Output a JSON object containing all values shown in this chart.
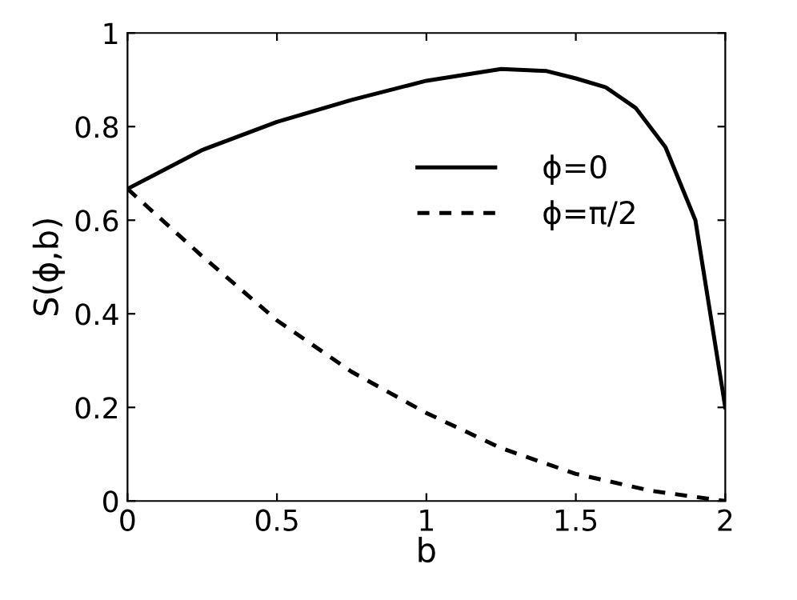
{
  "chart_data": {
    "type": "line",
    "xlabel": "b",
    "ylabel": "S(ϕ,b)",
    "xlim": [
      0,
      2
    ],
    "ylim": [
      0,
      1
    ],
    "xticks": [
      0,
      0.5,
      1,
      1.5,
      2
    ],
    "yticks": [
      0,
      0.2,
      0.4,
      0.6,
      0.8,
      1
    ],
    "legend": "top right",
    "grid": false,
    "series": [
      {
        "name": "ϕ=0",
        "color": "#000000",
        "line_style": "solid",
        "x": [
          0,
          0.25,
          0.5,
          0.75,
          1,
          1.25,
          1.4,
          1.5,
          1.6,
          1.7,
          1.8,
          1.9,
          2
        ],
        "values": [
          0.667,
          0.75,
          0.81,
          0.857,
          0.898,
          0.923,
          0.919,
          0.903,
          0.884,
          0.84,
          0.756,
          0.6,
          0.2
        ]
      },
      {
        "name": "ϕ=π/2",
        "color": "#000000",
        "line_style": "dashed",
        "x": [
          0,
          0.25,
          0.5,
          0.75,
          1,
          1.25,
          1.5,
          1.75,
          2
        ],
        "values": [
          0.667,
          0.523,
          0.386,
          0.276,
          0.188,
          0.113,
          0.058,
          0.022,
          0
        ]
      }
    ]
  }
}
